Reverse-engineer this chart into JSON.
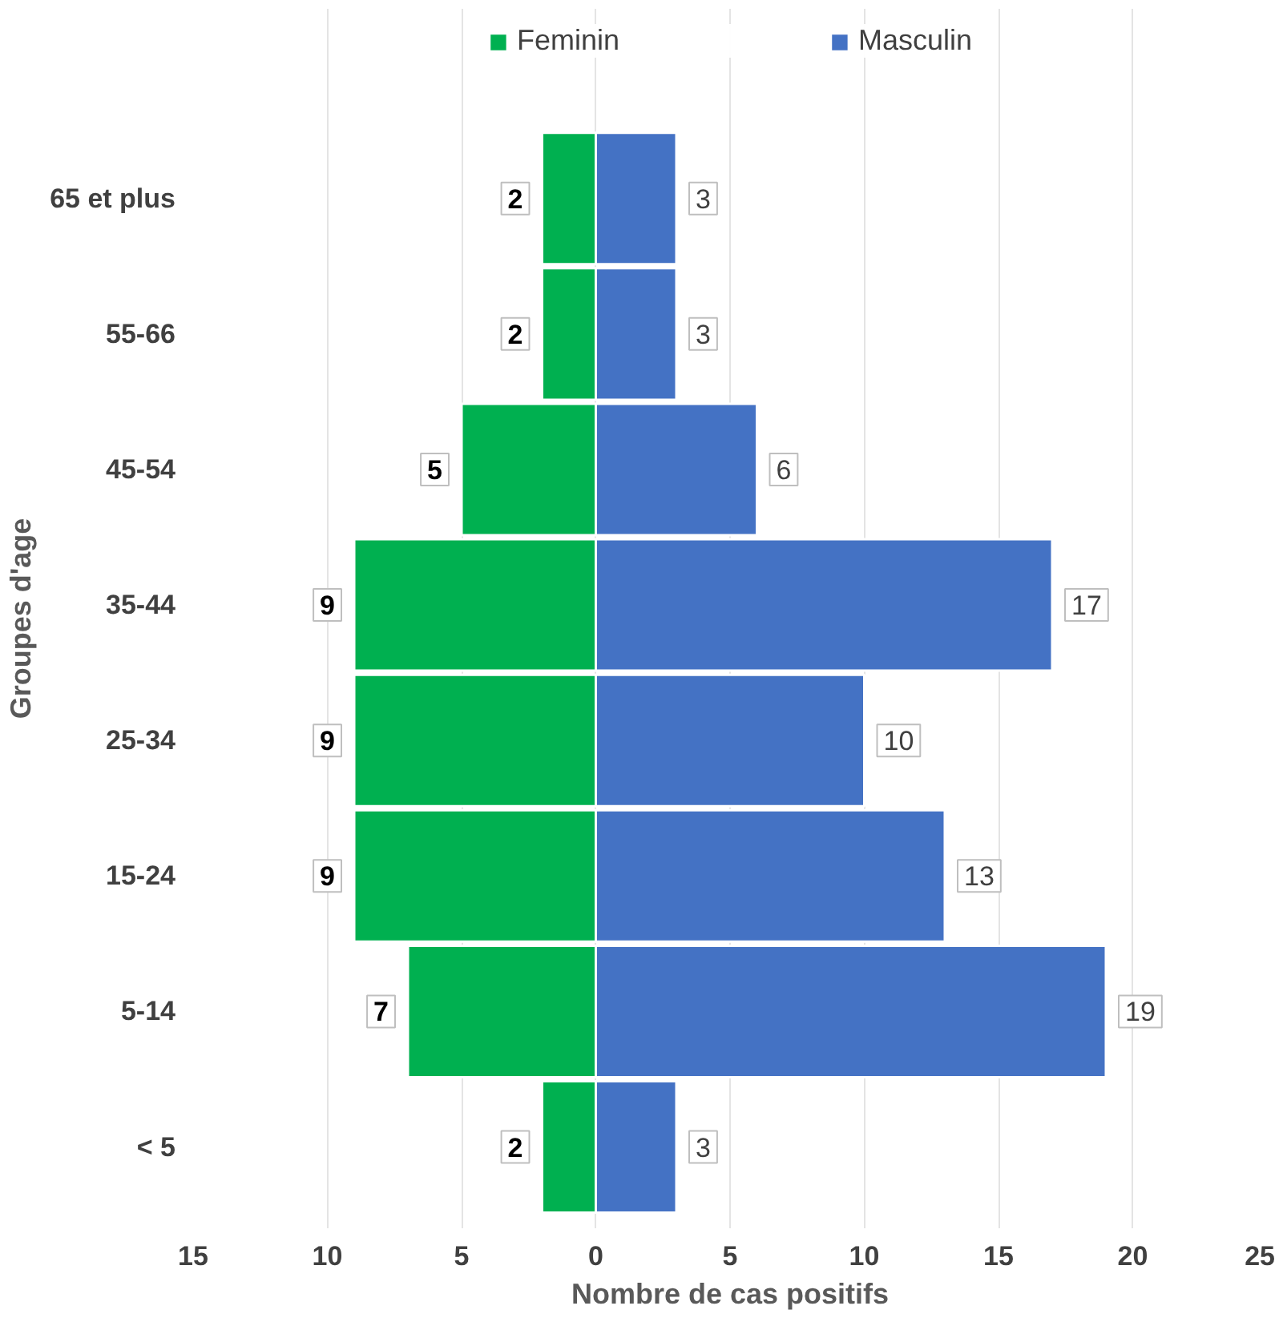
{
  "chart_data": {
    "type": "bar",
    "orientation": "horizontal",
    "xlabel": "Nombre de cas positifs",
    "ylabel": "Groupes d'age",
    "categories": [
      "65 et plus",
      "55-66",
      "45-54",
      "35-44",
      "25-34",
      "15-24",
      "5-14",
      "< 5"
    ],
    "series": [
      {
        "name": "Feminin",
        "color": "#00b050",
        "base": [
          -2,
          -2,
          -5,
          -9,
          -9,
          -9,
          -7,
          -2
        ],
        "values": [
          2,
          2,
          5,
          9,
          9,
          9,
          7,
          2
        ],
        "value_labels": [
          "2",
          "2",
          "5",
          "9",
          "9",
          "9",
          "7",
          "2"
        ]
      },
      {
        "name": "Masculin",
        "color": "#4472c4",
        "values": [
          3,
          3,
          6,
          17,
          10,
          13,
          19,
          3
        ],
        "value_labels": [
          "3",
          "3",
          "6",
          "17",
          "10",
          "13",
          "19",
          "3"
        ]
      }
    ],
    "xlim": [
      -15,
      25
    ],
    "xticks": [
      {
        "value": -15,
        "label": "15"
      },
      {
        "value": -10,
        "label": "10"
      },
      {
        "value": -5,
        "label": "5"
      },
      0,
      5,
      10,
      15,
      20,
      25
    ],
    "grid": "x",
    "legend": "top"
  }
}
